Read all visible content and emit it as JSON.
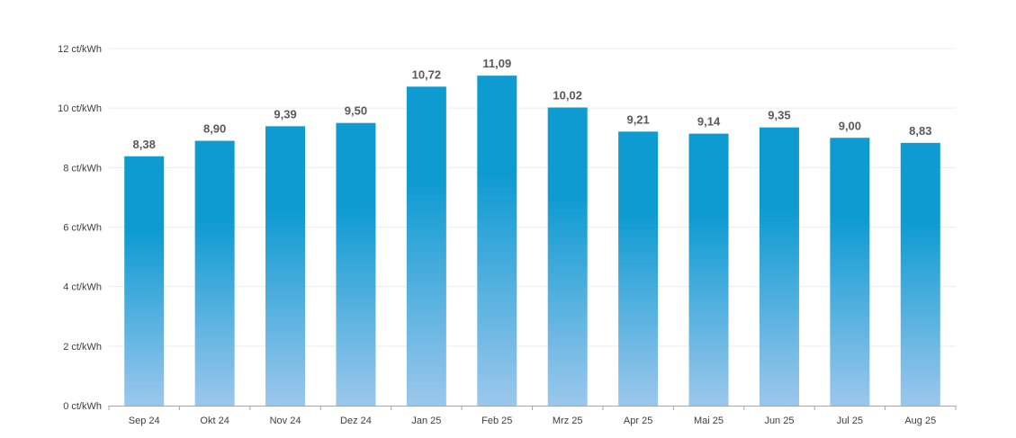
{
  "chart_data": {
    "type": "bar",
    "categories": [
      "Sep 24",
      "Okt 24",
      "Nov 24",
      "Dez 24",
      "Jan 25",
      "Feb 25",
      "Mrz 25",
      "Apr 25",
      "Mai 25",
      "Jun 25",
      "Jul 25",
      "Aug 25"
    ],
    "values": [
      8.38,
      8.9,
      9.39,
      9.5,
      10.72,
      11.09,
      10.02,
      9.21,
      9.14,
      9.35,
      9.0,
      8.83
    ],
    "value_labels": [
      "8,38",
      "8,90",
      "9,39",
      "9,50",
      "10,72",
      "11,09",
      "10,02",
      "9,21",
      "9,14",
      "9,35",
      "9,00",
      "8,83"
    ],
    "yticks": [
      0,
      2,
      4,
      6,
      8,
      10,
      12
    ],
    "ytick_labels": [
      "0 ct/kWh",
      "2 ct/kWh",
      "4 ct/kWh",
      "6 ct/kWh",
      "8 ct/kWh",
      "10 ct/kWh",
      "12 ct/kWh"
    ],
    "ylim": [
      0,
      12
    ],
    "grid": true,
    "legend": "none",
    "title": "",
    "xlabel": "",
    "ylabel": "",
    "colors": {
      "bar_top": "#0e9bd2",
      "bar_bottom": "#9cc7ec"
    }
  }
}
